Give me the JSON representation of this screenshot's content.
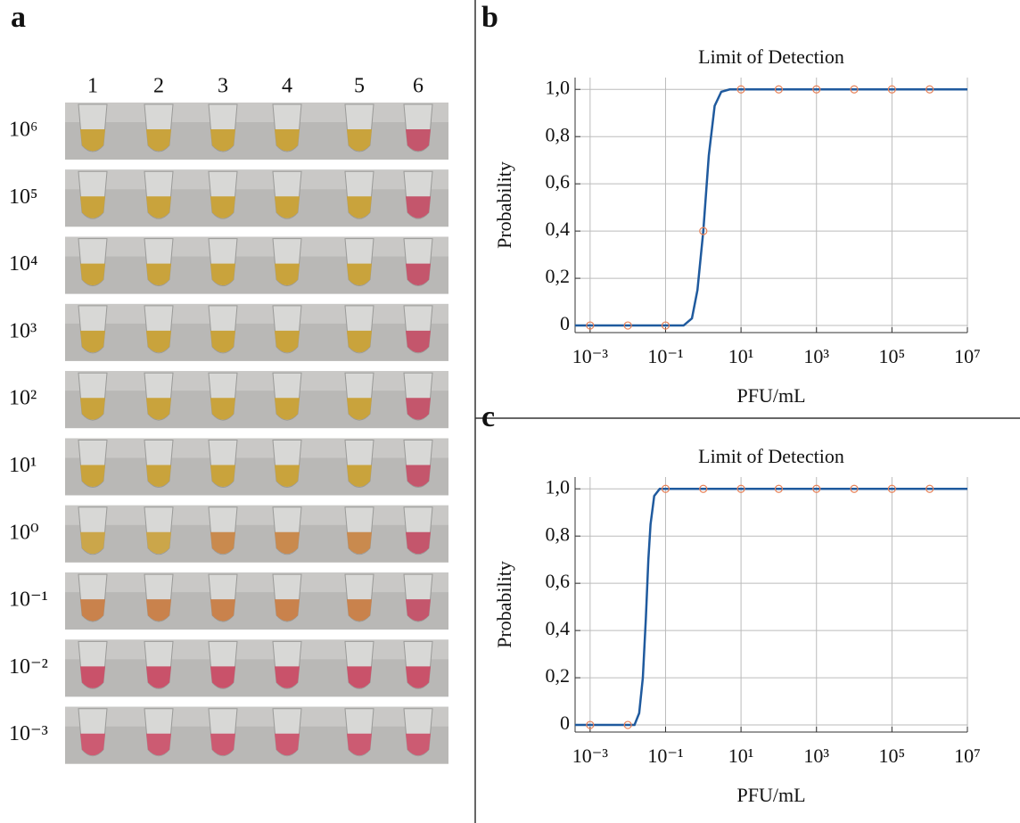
{
  "panel_a": {
    "label": "a",
    "columns": [
      "1",
      "2",
      "3",
      "4",
      "5",
      "6"
    ],
    "rows": [
      {
        "label": "10⁶",
        "colors": [
          "#c9a33c",
          "#c9a33c",
          "#c9a33c",
          "#c9a33c",
          "#c9a33c",
          "#c4566c"
        ]
      },
      {
        "label": "10⁵",
        "colors": [
          "#c9a33c",
          "#c9a33c",
          "#c9a33c",
          "#c9a33c",
          "#c9a33c",
          "#c4566c"
        ]
      },
      {
        "label": "10⁴",
        "colors": [
          "#c9a33c",
          "#c9a33c",
          "#c9a33c",
          "#c9a33c",
          "#c9a33c",
          "#c4566c"
        ]
      },
      {
        "label": "10³",
        "colors": [
          "#c9a33c",
          "#c9a33c",
          "#c9a33c",
          "#c9a33c",
          "#c9a33c",
          "#c4566c"
        ]
      },
      {
        "label": "10²",
        "colors": [
          "#c9a33c",
          "#c9a33c",
          "#c9a33c",
          "#c9a33c",
          "#c9a33c",
          "#c4566c"
        ]
      },
      {
        "label": "10¹",
        "colors": [
          "#c9a33c",
          "#c9a33c",
          "#c9a33c",
          "#c9a33c",
          "#c9a33c",
          "#c4566c"
        ]
      },
      {
        "label": "10⁰",
        "colors": [
          "#cba64a",
          "#cba64a",
          "#c98a4e",
          "#c98a4e",
          "#c98a4e",
          "#c4566c"
        ]
      },
      {
        "label": "10⁻¹",
        "colors": [
          "#c9824c",
          "#c9824c",
          "#c9824c",
          "#c9824c",
          "#c9824c",
          "#c4566c"
        ]
      },
      {
        "label": "10⁻²",
        "colors": [
          "#c9526a",
          "#c9526a",
          "#c9526a",
          "#c9526a",
          "#c9526a",
          "#c9526a"
        ]
      },
      {
        "label": "10⁻³",
        "colors": [
          "#cc5b72",
          "#cc5b72",
          "#cc5b72",
          "#cc5b72",
          "#cc5b72",
          "#cc5b72"
        ]
      }
    ]
  },
  "chart_data": [
    {
      "type": "scatter_fit",
      "panel_label": "b",
      "title": "Limit of Detection",
      "x_label": "PFU/mL",
      "y_label": "Probability",
      "log_x": true,
      "grid": true,
      "xlim": [
        0.0004,
        10000000
      ],
      "ylim": [
        -0.03,
        1.05
      ],
      "xticks": [
        {
          "value": 0.001,
          "label": "10⁻³"
        },
        {
          "value": 0.1,
          "label": "10⁻¹"
        },
        {
          "value": 10,
          "label": "10¹"
        },
        {
          "value": 1000,
          "label": "10³"
        },
        {
          "value": 100000,
          "label": "10⁵"
        },
        {
          "value": 10000000,
          "label": "10⁷"
        }
      ],
      "yticks": [
        0,
        {
          "value": 0.2,
          "label": "0,2"
        },
        {
          "value": 0.4,
          "label": "0,4"
        },
        {
          "value": 0.6,
          "label": "0,6"
        },
        {
          "value": 0.8,
          "label": "0,8"
        },
        {
          "value": 1,
          "label": "1,0"
        }
      ],
      "points": {
        "color": "#e8835a",
        "x": [
          0.001,
          0.01,
          0.1,
          1,
          10,
          100,
          1000,
          10000,
          100000,
          1000000
        ],
        "y": [
          0,
          0,
          0,
          0.4,
          1,
          1,
          1,
          1,
          1,
          1
        ]
      },
      "curve": {
        "color": "#1f5a9e",
        "x": [
          0.0004,
          0.3,
          0.5,
          0.7,
          1,
          1.4,
          2,
          3,
          5,
          10000000
        ],
        "y": [
          0,
          0,
          0.03,
          0.15,
          0.4,
          0.72,
          0.93,
          0.99,
          1,
          1
        ]
      }
    },
    {
      "type": "scatter_fit",
      "panel_label": "c",
      "title": "Limit of Detection",
      "x_label": "PFU/mL",
      "y_label": "Probability",
      "log_x": true,
      "grid": true,
      "xlim": [
        0.0004,
        10000000
      ],
      "ylim": [
        -0.03,
        1.05
      ],
      "xticks": [
        {
          "value": 0.001,
          "label": "10⁻³"
        },
        {
          "value": 0.1,
          "label": "10⁻¹"
        },
        {
          "value": 10,
          "label": "10¹"
        },
        {
          "value": 1000,
          "label": "10³"
        },
        {
          "value": 100000,
          "label": "10⁵"
        },
        {
          "value": 10000000,
          "label": "10⁷"
        }
      ],
      "yticks": [
        0,
        {
          "value": 0.2,
          "label": "0,2"
        },
        {
          "value": 0.4,
          "label": "0,4"
        },
        {
          "value": 0.6,
          "label": "0,6"
        },
        {
          "value": 0.8,
          "label": "0,8"
        },
        {
          "value": 1,
          "label": "1,0"
        }
      ],
      "points": {
        "color": "#e8835a",
        "x": [
          0.001,
          0.01,
          0.1,
          1,
          10,
          100,
          1000,
          10000,
          100000,
          1000000
        ],
        "y": [
          0,
          0,
          1,
          1,
          1,
          1,
          1,
          1,
          1,
          1
        ]
      },
      "curve": {
        "color": "#1f5a9e",
        "x": [
          0.0004,
          0.015,
          0.02,
          0.025,
          0.03,
          0.035,
          0.04,
          0.05,
          0.07,
          10000000
        ],
        "y": [
          0,
          0,
          0.05,
          0.2,
          0.45,
          0.7,
          0.85,
          0.97,
          1,
          1
        ]
      }
    }
  ]
}
